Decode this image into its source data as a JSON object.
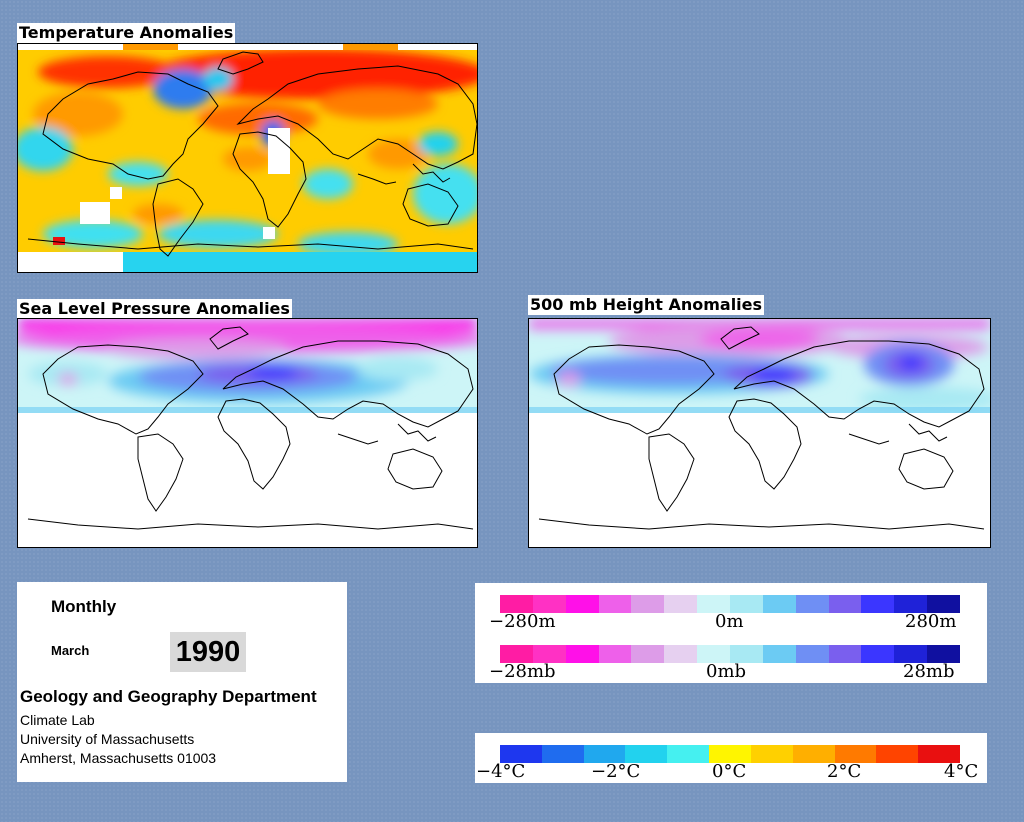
{
  "panels": {
    "temperature": {
      "title": "Temperature Anomalies"
    },
    "slp": {
      "title": "Sea Level Pressure Anomalies"
    },
    "height500": {
      "title": "500 mb Height Anomalies"
    }
  },
  "info": {
    "period": "Monthly",
    "month": "March",
    "year": "1990",
    "department": "Geology and Geography Department",
    "lab": "Climate Lab",
    "university": "University of Massachusetts",
    "address": "Amherst, Massachusetts 01003"
  },
  "legends": {
    "height": {
      "labels": [
        "−280m",
        "0m",
        "280m"
      ]
    },
    "pressure": {
      "labels": [
        "−28mb",
        "0mb",
        "28mb"
      ]
    },
    "temperature": {
      "labels": [
        "−4°C",
        "−2°C",
        "0°C",
        "2°C",
        "4°C"
      ]
    }
  },
  "colors": {
    "background": "#7795bf",
    "anomaly_scale": [
      "#ff1ca4",
      "#ff31c4",
      "#ff10e8",
      "#ee60ea",
      "#dd9ce8",
      "#e6d0f0",
      "#cdf5f7",
      "#a8e9f3",
      "#6ccbf3",
      "#6f8ff4",
      "#7a5fee",
      "#3b36ff",
      "#1f22d8",
      "#1010a0"
    ],
    "temperature_scale": [
      "#1e37ef",
      "#1f6cef",
      "#20a8ee",
      "#22d2ee",
      "#45f0f0",
      "#fff500",
      "#ffd000",
      "#ffaf00",
      "#ff7a00",
      "#ff4400",
      "#e91010"
    ]
  }
}
